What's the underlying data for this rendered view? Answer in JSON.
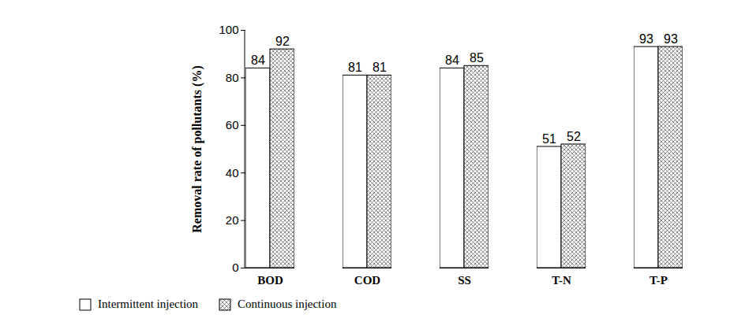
{
  "chart_data": {
    "type": "bar",
    "y_label": "Removal rate of pollutants (%)",
    "categories": [
      "BOD",
      "COD",
      "SS",
      "T-N",
      "T-P"
    ],
    "series": [
      {
        "name": "Intermittent injection",
        "color": "#ffffff",
        "values": [
          84,
          81,
          84,
          51,
          93
        ]
      },
      {
        "name": "Continuous injection",
        "color": "#808080",
        "marker": "crosshatch",
        "values": [
          92,
          81,
          85,
          52,
          93
        ]
      }
    ],
    "ylim": [
      0,
      100
    ],
    "yticks": [
      0,
      20,
      40,
      60,
      80,
      100
    ],
    "data_labels": true,
    "legend": "bottom",
    "grid": false
  }
}
